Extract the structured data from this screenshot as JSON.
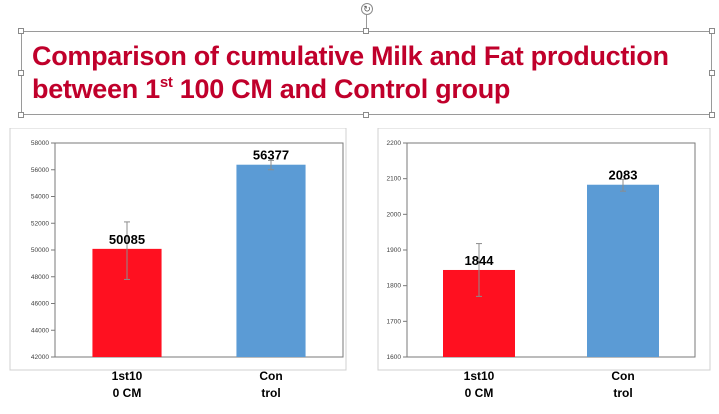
{
  "slide": {
    "title_line1": "Comparison of cumulative Milk and Fat production",
    "title_line2_prefix": "between 1",
    "title_line2_sup": "st",
    "title_line2_suffix": " 100 CM and Control group",
    "title_color": "#c0002b"
  },
  "chart_data": [
    {
      "type": "bar",
      "categories": [
        [
          "1st10",
          "0 CM"
        ],
        [
          "Con",
          "trol"
        ]
      ],
      "values": [
        50085,
        56377
      ],
      "data_labels": [
        "50085",
        "56377"
      ],
      "error": [
        [
          47800,
          52100
        ],
        [
          56000,
          56700
        ]
      ],
      "colors": [
        "#ff1020",
        "#5b9bd5"
      ],
      "ylim": [
        42000,
        58000
      ],
      "yticks": [
        42000,
        44000,
        46000,
        48000,
        50000,
        52000,
        54000,
        56000,
        58000
      ],
      "grid": false,
      "title": "",
      "xlabel": "",
      "ylabel": ""
    },
    {
      "type": "bar",
      "categories": [
        [
          "1st10",
          "0 CM"
        ],
        [
          "Con",
          "trol"
        ]
      ],
      "values": [
        1844,
        2083
      ],
      "data_labels": [
        "1844",
        "2083"
      ],
      "error": [
        [
          1770,
          1918
        ],
        [
          2065,
          2098
        ]
      ],
      "colors": [
        "#ff1020",
        "#5b9bd5"
      ],
      "ylim": [
        1600,
        2200
      ],
      "yticks": [
        1600,
        1700,
        1800,
        1900,
        2000,
        2100,
        2200
      ],
      "grid": false,
      "title": "",
      "xlabel": "",
      "ylabel": ""
    }
  ]
}
